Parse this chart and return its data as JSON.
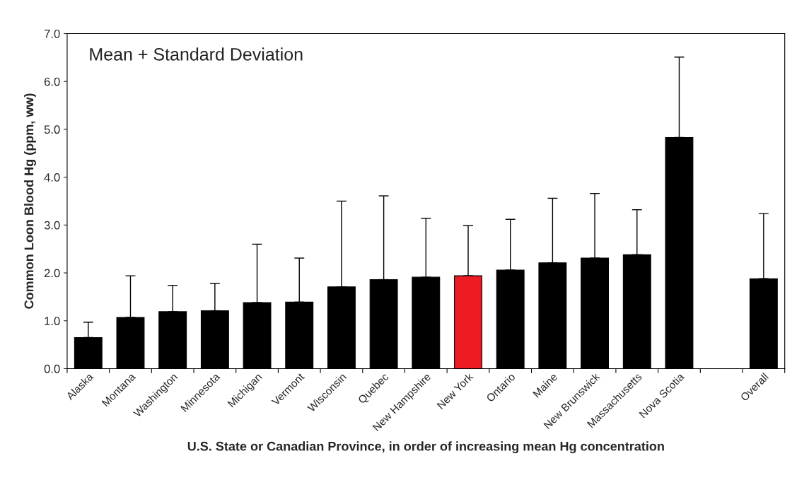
{
  "chart_data": {
    "type": "bar",
    "annotations": [
      "Mean + Standard Deviation"
    ],
    "xlabel": "U.S. State or Canadian Province, in order of increasing mean Hg concentration",
    "ylabel": "Common Loon Blood Hg (ppm, ww)",
    "categories": [
      "Alaska",
      "Montana",
      "Washington",
      "Minnesota",
      "Michigan",
      "Vermont",
      "Wisconsin",
      "Quebec",
      "New Hampshire",
      "New York",
      "Ontario",
      "Maine",
      "New Brunswick",
      "Massachusetts",
      "Nova Scotia",
      null,
      "Overall"
    ],
    "values": [
      0.65,
      1.07,
      1.19,
      1.21,
      1.38,
      1.39,
      1.71,
      1.86,
      1.91,
      1.94,
      2.06,
      2.21,
      2.31,
      2.38,
      4.83,
      null,
      1.88
    ],
    "errors": [
      [
        0.65,
        0.97
      ],
      [
        1.07,
        1.94
      ],
      [
        1.19,
        1.74
      ],
      [
        1.21,
        1.78
      ],
      [
        1.38,
        2.6
      ],
      [
        1.39,
        2.31
      ],
      [
        1.71,
        3.5
      ],
      [
        1.86,
        3.61
      ],
      [
        1.91,
        3.14
      ],
      [
        1.94,
        2.99
      ],
      [
        2.06,
        3.12
      ],
      [
        2.21,
        3.56
      ],
      [
        2.31,
        3.66
      ],
      [
        2.38,
        3.32
      ],
      [
        4.83,
        6.51
      ],
      null,
      [
        1.88,
        3.24
      ]
    ],
    "colors": [
      "#000000",
      "#000000",
      "#000000",
      "#000000",
      "#000000",
      "#000000",
      "#000000",
      "#000000",
      "#000000",
      "#ed1c24",
      "#000000",
      "#000000",
      "#000000",
      "#000000",
      "#000000",
      "#000000",
      "#000000"
    ],
    "ylim": [
      0,
      7
    ],
    "yticks": [
      {
        "value": 0,
        "label": "0.0"
      },
      {
        "value": 1,
        "label": "1.0"
      },
      {
        "value": 2,
        "label": "2.0"
      },
      {
        "value": 3,
        "label": "3.0"
      },
      {
        "value": 4,
        "label": "4.0"
      },
      {
        "value": 5,
        "label": "5.0"
      },
      {
        "value": 6,
        "label": "6.0"
      },
      {
        "value": 7,
        "label": "7.0"
      }
    ],
    "grid": false
  }
}
